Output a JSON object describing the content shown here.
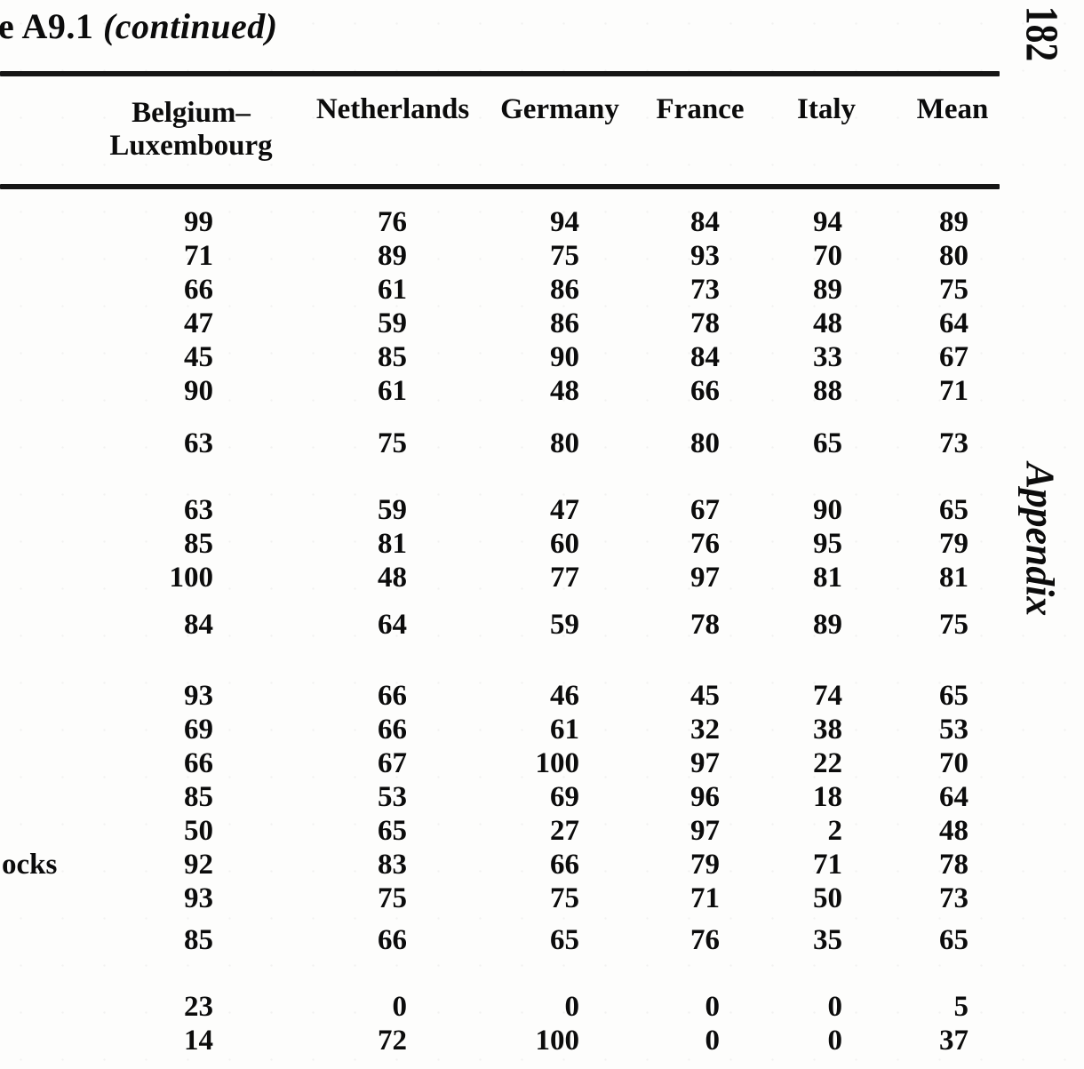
{
  "page": {
    "title_prefix": "e A9.1 ",
    "title_emphasis": "(continued)",
    "page_number": "182",
    "side_label": "Appendix",
    "row_label_fragment": "ocks"
  },
  "table": {
    "columns": [
      {
        "line1": "Belgium–",
        "line2": "Luxembourg"
      },
      {
        "line1": "Netherlands"
      },
      {
        "line1": "Germany"
      },
      {
        "line1": "France"
      },
      {
        "line1": "Italy"
      },
      {
        "line1": "Mean"
      }
    ],
    "groups": [
      {
        "name": "block-1",
        "rows": [
          [
            99,
            76,
            94,
            84,
            94,
            89
          ],
          [
            71,
            89,
            75,
            93,
            70,
            80
          ],
          [
            66,
            61,
            86,
            73,
            89,
            75
          ],
          [
            47,
            59,
            86,
            78,
            48,
            64
          ],
          [
            45,
            85,
            90,
            84,
            33,
            67
          ],
          [
            90,
            61,
            48,
            66,
            88,
            71
          ]
        ]
      },
      {
        "name": "block-1-summary",
        "rows": [
          [
            63,
            75,
            80,
            80,
            65,
            73
          ]
        ]
      },
      {
        "name": "block-2",
        "rows": [
          [
            63,
            59,
            47,
            67,
            90,
            65
          ],
          [
            85,
            81,
            60,
            76,
            95,
            79
          ],
          [
            100,
            48,
            77,
            97,
            81,
            81
          ]
        ]
      },
      {
        "name": "block-2-summary",
        "rows": [
          [
            84,
            64,
            59,
            78,
            89,
            75
          ]
        ]
      },
      {
        "name": "block-3",
        "rows": [
          [
            93,
            66,
            46,
            45,
            74,
            65
          ],
          [
            69,
            66,
            61,
            32,
            38,
            53
          ],
          [
            66,
            67,
            100,
            97,
            22,
            70
          ],
          [
            85,
            53,
            69,
            96,
            18,
            64
          ],
          [
            50,
            65,
            27,
            97,
            2,
            48
          ],
          [
            92,
            83,
            66,
            79,
            71,
            78
          ],
          [
            93,
            75,
            75,
            71,
            50,
            73
          ]
        ]
      },
      {
        "name": "block-3-summary",
        "rows": [
          [
            85,
            66,
            65,
            76,
            35,
            65
          ]
        ]
      },
      {
        "name": "block-4",
        "rows": [
          [
            23,
            0,
            0,
            0,
            0,
            5
          ],
          [
            14,
            72,
            100,
            0,
            0,
            37
          ]
        ]
      }
    ]
  }
}
